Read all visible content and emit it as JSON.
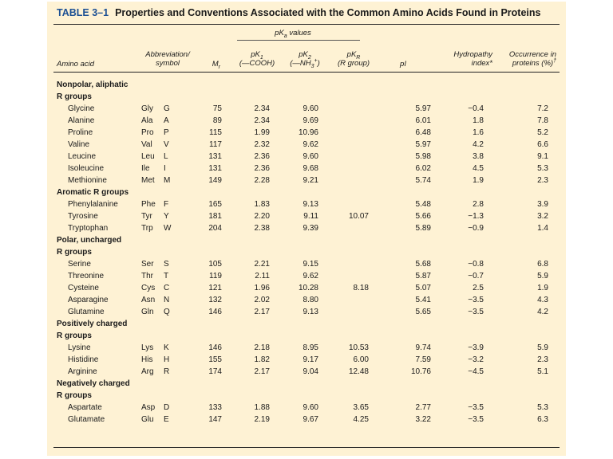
{
  "title": {
    "number": "TABLE 3–1",
    "text": "Properties and Conventions Associated with the Common Amino Acids Found in Proteins"
  },
  "headers": {
    "amino_acid": "Amino acid",
    "abbreviation_line1": "Abbreviation/",
    "abbreviation_line2": "symbol",
    "mr": "M",
    "mr_sub": "r",
    "pka_group": "pK",
    "pka_group_sub": "a",
    "pka_group_suffix": " values",
    "pk1": "pK",
    "pk1_sub": "1",
    "pk1_desc": "(—COOH)",
    "pk2": "pK",
    "pk2_sub": "2",
    "pk2_desc_a": "(—NH",
    "pk2_desc_sub": "3",
    "pk2_desc_sup": "+",
    "pk2_desc_b": ")",
    "pkr": "pK",
    "pkr_sub": "R",
    "pkr_desc": "(R group)",
    "pi": "pI",
    "hydro_line1": "Hydropathy",
    "hydro_line2": "index*",
    "occ_line1": "Occurrence in",
    "occ_line2": "proteins (%)",
    "occ_sup": "†"
  },
  "groups": [
    {
      "label_lines": [
        "Nonpolar, aliphatic",
        "R groups"
      ],
      "rows": [
        {
          "name": "Glycine",
          "abbr": "Gly",
          "letter": "G",
          "mr": "75",
          "pk1": "2.34",
          "pk2": "9.60",
          "pkr": "",
          "pi": "5.97",
          "hydro": "−0.4",
          "occ": "7.2"
        },
        {
          "name": "Alanine",
          "abbr": "Ala",
          "letter": "A",
          "mr": "89",
          "pk1": "2.34",
          "pk2": "9.69",
          "pkr": "",
          "pi": "6.01",
          "hydro": "1.8",
          "occ": "7.8"
        },
        {
          "name": "Proline",
          "abbr": "Pro",
          "letter": "P",
          "mr": "115",
          "pk1": "1.99",
          "pk2": "10.96",
          "pkr": "",
          "pi": "6.48",
          "hydro": "1.6",
          "occ": "5.2"
        },
        {
          "name": "Valine",
          "abbr": "Val",
          "letter": "V",
          "mr": "117",
          "pk1": "2.32",
          "pk2": "9.62",
          "pkr": "",
          "pi": "5.97",
          "hydro": "4.2",
          "occ": "6.6"
        },
        {
          "name": "Leucine",
          "abbr": "Leu",
          "letter": "L",
          "mr": "131",
          "pk1": "2.36",
          "pk2": "9.60",
          "pkr": "",
          "pi": "5.98",
          "hydro": "3.8",
          "occ": "9.1"
        },
        {
          "name": "Isoleucine",
          "abbr": "Ile",
          "letter": "I",
          "mr": "131",
          "pk1": "2.36",
          "pk2": "9.68",
          "pkr": "",
          "pi": "6.02",
          "hydro": "4.5",
          "occ": "5.3"
        },
        {
          "name": "Methionine",
          "abbr": "Met",
          "letter": "M",
          "mr": "149",
          "pk1": "2.28",
          "pk2": "9.21",
          "pkr": "",
          "pi": "5.74",
          "hydro": "1.9",
          "occ": "2.3"
        }
      ]
    },
    {
      "label_lines": [
        "Aromatic R groups"
      ],
      "rows": [
        {
          "name": "Phenylalanine",
          "abbr": "Phe",
          "letter": "F",
          "mr": "165",
          "pk1": "1.83",
          "pk2": "9.13",
          "pkr": "",
          "pi": "5.48",
          "hydro": "2.8",
          "occ": "3.9"
        },
        {
          "name": "Tyrosine",
          "abbr": "Tyr",
          "letter": "Y",
          "mr": "181",
          "pk1": "2.20",
          "pk2": "9.11",
          "pkr": "10.07",
          "pi": "5.66",
          "hydro": "−1.3",
          "occ": "3.2"
        },
        {
          "name": "Tryptophan",
          "abbr": "Trp",
          "letter": "W",
          "mr": "204",
          "pk1": "2.38",
          "pk2": "9.39",
          "pkr": "",
          "pi": "5.89",
          "hydro": "−0.9",
          "occ": "1.4"
        }
      ]
    },
    {
      "label_lines": [
        "Polar, uncharged",
        "R groups"
      ],
      "rows": [
        {
          "name": "Serine",
          "abbr": "Ser",
          "letter": "S",
          "mr": "105",
          "pk1": "2.21",
          "pk2": "9.15",
          "pkr": "",
          "pi": "5.68",
          "hydro": "−0.8",
          "occ": "6.8"
        },
        {
          "name": "Threonine",
          "abbr": "Thr",
          "letter": "T",
          "mr": "119",
          "pk1": "2.11",
          "pk2": "9.62",
          "pkr": "",
          "pi": "5.87",
          "hydro": "−0.7",
          "occ": "5.9"
        },
        {
          "name": "Cysteine",
          "abbr": "Cys",
          "letter": "C",
          "mr": "121",
          "pk1": "1.96",
          "pk2": "10.28",
          "pkr": "8.18",
          "pi": "5.07",
          "hydro": "2.5",
          "occ": "1.9"
        },
        {
          "name": "Asparagine",
          "abbr": "Asn",
          "letter": "N",
          "mr": "132",
          "pk1": "2.02",
          "pk2": "8.80",
          "pkr": "",
          "pi": "5.41",
          "hydro": "−3.5",
          "occ": "4.3"
        },
        {
          "name": "Glutamine",
          "abbr": "Gln",
          "letter": "Q",
          "mr": "146",
          "pk1": "2.17",
          "pk2": "9.13",
          "pkr": "",
          "pi": "5.65",
          "hydro": "−3.5",
          "occ": "4.2"
        }
      ]
    },
    {
      "label_lines": [
        "Positively charged",
        "R groups"
      ],
      "rows": [
        {
          "name": "Lysine",
          "abbr": "Lys",
          "letter": "K",
          "mr": "146",
          "pk1": "2.18",
          "pk2": "8.95",
          "pkr": "10.53",
          "pi": "9.74",
          "hydro": "−3.9",
          "occ": "5.9"
        },
        {
          "name": "Histidine",
          "abbr": "His",
          "letter": "H",
          "mr": "155",
          "pk1": "1.82",
          "pk2": "9.17",
          "pkr": "6.00",
          "pi": "7.59",
          "hydro": "−3.2",
          "occ": "2.3"
        },
        {
          "name": "Arginine",
          "abbr": "Arg",
          "letter": "R",
          "mr": "174",
          "pk1": "2.17",
          "pk2": "9.04",
          "pkr": "12.48",
          "pi": "10.76",
          "hydro": "−4.5",
          "occ": "5.1"
        }
      ]
    },
    {
      "label_lines": [
        "Negatively charged",
        "R groups"
      ],
      "rows": [
        {
          "name": "Aspartate",
          "abbr": "Asp",
          "letter": "D",
          "mr": "133",
          "pk1": "1.88",
          "pk2": "9.60",
          "pkr": "3.65",
          "pi": "2.77",
          "hydro": "−3.5",
          "occ": "5.3"
        },
        {
          "name": "Glutamate",
          "abbr": "Glu",
          "letter": "E",
          "mr": "147",
          "pk1": "2.19",
          "pk2": "9.67",
          "pkr": "4.25",
          "pi": "3.22",
          "hydro": "−3.5",
          "occ": "6.3"
        }
      ]
    }
  ]
}
